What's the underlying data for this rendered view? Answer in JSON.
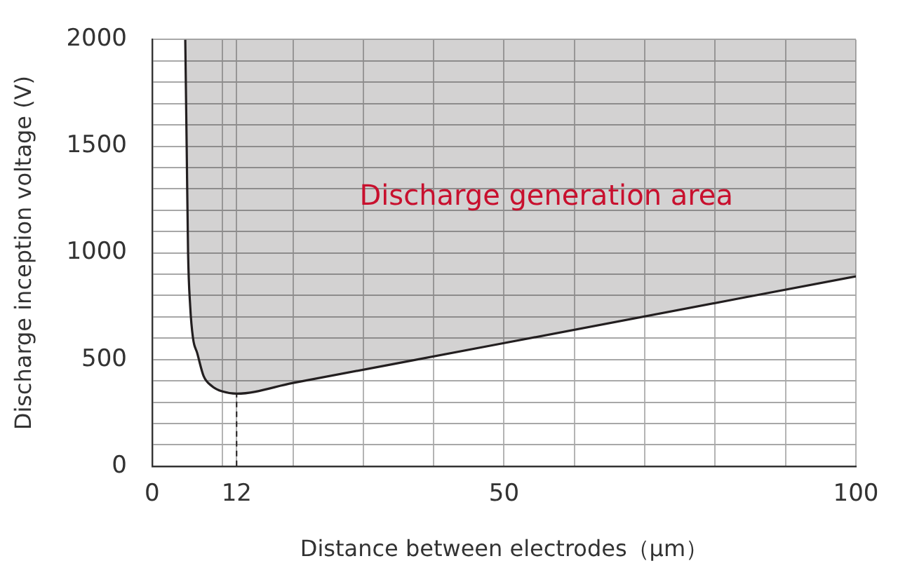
{
  "chart_data": {
    "type": "line",
    "xlabel": "Distance between electrodes（μm）",
    "ylabel": "Discharge inception voltage (V)",
    "annotations": [
      "Discharge generation area"
    ],
    "series": [
      {
        "color": "#231f20",
        "x": [
          4.7,
          4.9,
          5.1,
          5.4,
          5.8,
          6.4,
          7.3,
          8.5,
          10,
          12,
          20,
          50,
          100
        ],
        "values": [
          2000,
          1500,
          1000,
          750,
          600,
          530,
          423,
          375,
          350,
          340,
          390,
          577,
          890
        ]
      }
    ],
    "xlim": [
      0,
      100
    ],
    "xticks": [
      0,
      {
        "value": 10,
        "label": null
      },
      12,
      {
        "value": 20,
        "label": null
      },
      {
        "value": 30,
        "label": null
      },
      {
        "value": 40,
        "label": null
      },
      50,
      {
        "value": 60,
        "label": null
      },
      {
        "value": 70,
        "label": null
      },
      {
        "value": 80,
        "label": null
      },
      {
        "value": 90,
        "label": null
      },
      100
    ],
    "ylim": [
      0,
      2000
    ],
    "yticks": [
      0,
      {
        "value": 100,
        "label": null
      },
      {
        "value": 200,
        "label": null
      },
      {
        "value": 300,
        "label": null
      },
      {
        "value": 400,
        "label": null
      },
      500,
      {
        "value": 600,
        "label": null
      },
      {
        "value": 700,
        "label": null
      },
      {
        "value": 800,
        "label": null
      },
      {
        "value": 900,
        "label": null
      },
      1000,
      {
        "value": 1100,
        "label": null
      },
      {
        "value": 1200,
        "label": null
      },
      {
        "value": 1300,
        "label": null
      },
      {
        "value": 1400,
        "label": null
      },
      1500,
      {
        "value": 1600,
        "label": null
      },
      {
        "value": 1700,
        "label": null
      },
      {
        "value": 1800,
        "label": null
      },
      {
        "value": 1900,
        "label": null
      },
      2000
    ],
    "ref_lines": [
      {
        "axis": "x",
        "value": 12,
        "line_style": "dashed",
        "color": "#231f20"
      }
    ],
    "grid": true,
    "legend": false,
    "marker": "none",
    "line_style": "solid"
  }
}
